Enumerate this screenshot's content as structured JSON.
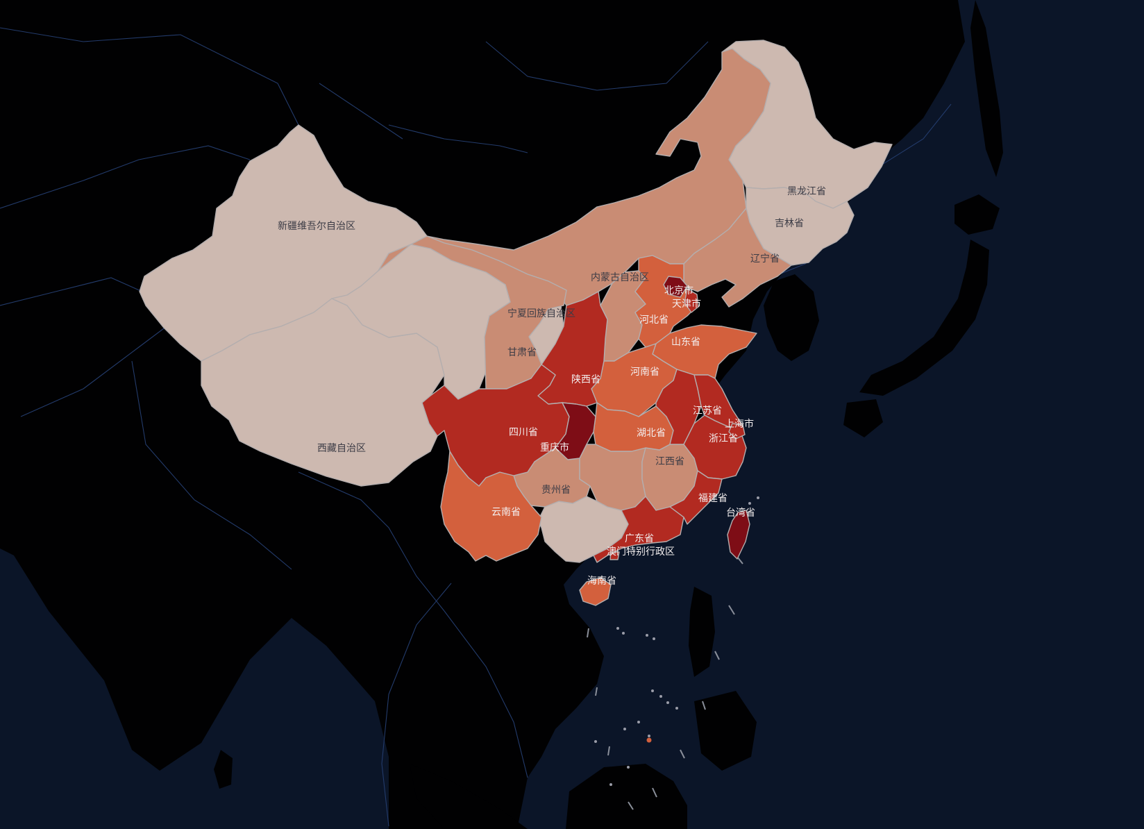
{
  "map": {
    "colors": {
      "sea": "#0b1528",
      "land": "#010102",
      "border_line": "#233b6b",
      "province_stroke": "#b4aeae",
      "label_light": "#3b3b45",
      "label_dark": "#f3eeee",
      "scale": [
        "#cdb9b0",
        "#c98c74",
        "#d3603d",
        "#b22a21",
        "#7e0d16"
      ]
    },
    "provinces": [
      {
        "id": "xinjiang",
        "label": "新疆维吾尔自治区",
        "level": 0
      },
      {
        "id": "tibet",
        "label": "西藏自治区",
        "level": 0
      },
      {
        "id": "qinghai",
        "label": "",
        "level": 0
      },
      {
        "id": "heilongjiang",
        "label": "黑龙江省",
        "level": 0
      },
      {
        "id": "jilin",
        "label": "吉林省",
        "level": 0
      },
      {
        "id": "ningxia",
        "label": "宁夏回族自治区",
        "level": 0
      },
      {
        "id": "guangxi",
        "label": "",
        "level": 0
      },
      {
        "id": "inner-mongolia",
        "label": "内蒙古自治区",
        "level": 1
      },
      {
        "id": "gansu",
        "label": "甘肃省",
        "level": 1
      },
      {
        "id": "liaoning",
        "label": "辽宁省",
        "level": 1
      },
      {
        "id": "shanxi",
        "label": "",
        "level": 1
      },
      {
        "id": "guizhou",
        "label": "贵州省",
        "level": 1
      },
      {
        "id": "hunan",
        "label": "",
        "level": 1
      },
      {
        "id": "jiangxi",
        "label": "江西省",
        "level": 1
      },
      {
        "id": "hebei",
        "label": "河北省",
        "level": 2
      },
      {
        "id": "shandong",
        "label": "山东省",
        "level": 2
      },
      {
        "id": "henan",
        "label": "河南省",
        "level": 2
      },
      {
        "id": "hubei",
        "label": "湖北省",
        "level": 2
      },
      {
        "id": "yunnan",
        "label": "云南省",
        "level": 2
      },
      {
        "id": "hainan",
        "label": "海南省",
        "level": 2
      },
      {
        "id": "shaanxi",
        "label": "陕西省",
        "level": 3
      },
      {
        "id": "sichuan",
        "label": "四川省",
        "level": 3
      },
      {
        "id": "jiangsu",
        "label": "江苏省",
        "level": 3
      },
      {
        "id": "anhui",
        "label": "",
        "level": 3
      },
      {
        "id": "zhejiang",
        "label": "浙江省",
        "level": 3
      },
      {
        "id": "fujian",
        "label": "福建省",
        "level": 3
      },
      {
        "id": "guangdong",
        "label": "广东省",
        "level": 3
      },
      {
        "id": "shanghai",
        "label": "上海市",
        "level": 3
      },
      {
        "id": "tianjin",
        "label": "天津市",
        "level": 3
      },
      {
        "id": "macau",
        "label": "澳门特别行政区",
        "level": 3
      },
      {
        "id": "beijing",
        "label": "北京市",
        "level": 4
      },
      {
        "id": "chongqing",
        "label": "重庆市",
        "level": 4
      },
      {
        "id": "taiwan",
        "label": "台湾省",
        "level": 4
      }
    ]
  }
}
